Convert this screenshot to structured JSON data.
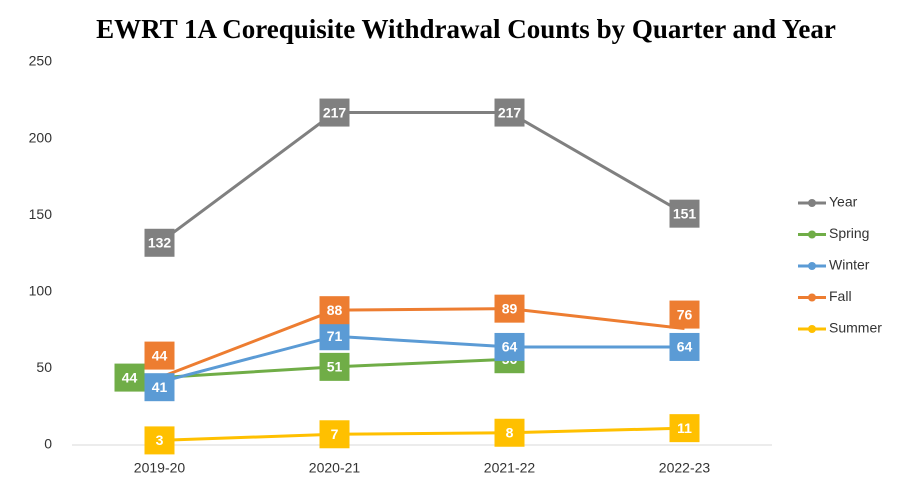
{
  "chart_data": {
    "type": "line",
    "title": "EWRT 1A Corequisite Withdrawal Counts by Quarter and Year",
    "categories": [
      "2019-20",
      "2020-21",
      "2021-22",
      "2022-23"
    ],
    "series": [
      {
        "name": "Year",
        "color": "#808080",
        "values": [
          132,
          217,
          217,
          151
        ]
      },
      {
        "name": "Spring",
        "color": "#70ad47",
        "values": [
          44,
          51,
          56,
          null
        ]
      },
      {
        "name": "Winter",
        "color": "#5b9bd5",
        "values": [
          41,
          71,
          64,
          64
        ]
      },
      {
        "name": "Fall",
        "color": "#ed7d31",
        "values": [
          44,
          88,
          89,
          76
        ]
      },
      {
        "name": "Summer",
        "color": "#ffc000",
        "values": [
          3,
          7,
          8,
          11
        ]
      }
    ],
    "ylim": [
      0,
      250
    ],
    "yticks": [
      0,
      50,
      100,
      150,
      200,
      250
    ],
    "grid": false,
    "legend": "right"
  }
}
